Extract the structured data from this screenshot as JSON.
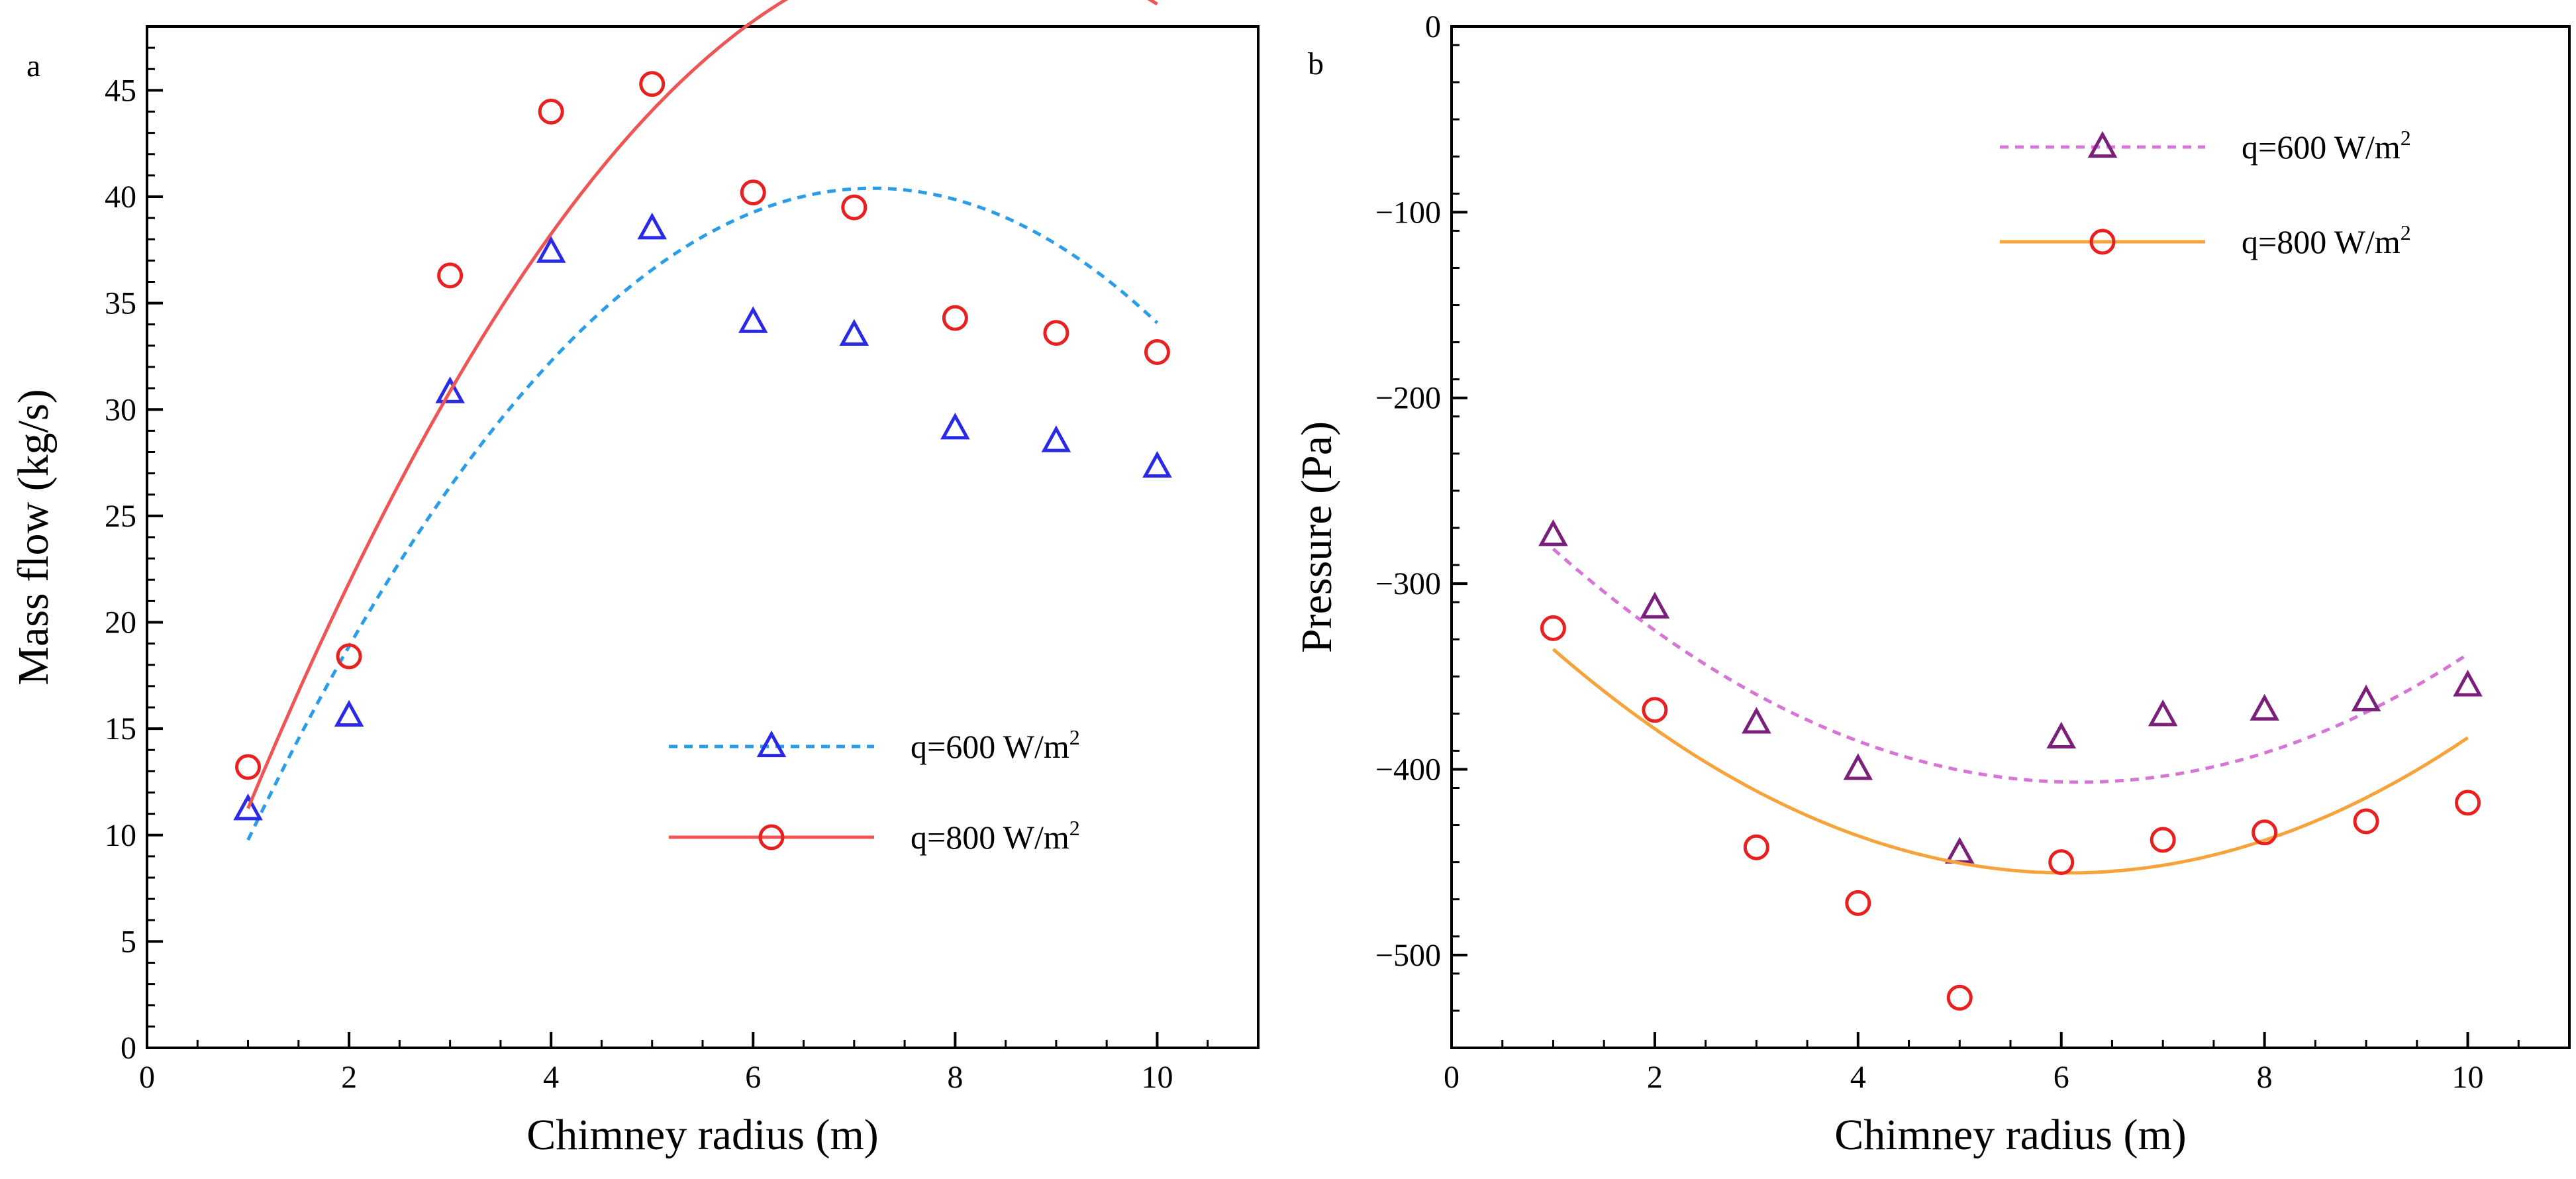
{
  "chart_data": [
    {
      "panel": "a",
      "type": "scatter",
      "xlabel": "Chimney radius (m)",
      "ylabel": "Mass flow (kg/s)",
      "xlim": [
        0,
        11
      ],
      "ylim": [
        0,
        48
      ],
      "xticks": [
        0,
        2,
        4,
        6,
        8,
        10
      ],
      "yticks": [
        0,
        5,
        10,
        15,
        20,
        25,
        30,
        35,
        40,
        45
      ],
      "x_minor_step": 0.5,
      "y_minor_step": 1,
      "legend_position": "lower-right",
      "series": [
        {
          "name": "q=600 W/m",
          "name_sup": "2",
          "marker": "triangle",
          "line": "dotted",
          "color": "#2a2ae6",
          "line_color": "#2b9de8",
          "x": [
            1,
            2,
            3,
            4,
            5,
            6,
            7,
            8,
            9,
            10
          ],
          "values": [
            11.2,
            15.6,
            30.8,
            37.4,
            38.5,
            34.1,
            33.5,
            29.1,
            28.5,
            27.3
          ],
          "fit": [
            -0.8,
            11.5,
            -0.93
          ]
        },
        {
          "name": "q=800 W/m",
          "name_sup": "2",
          "marker": "circle",
          "line": "solid",
          "color": "#e82020",
          "line_color": "#ee5555",
          "x": [
            1,
            2,
            3,
            4,
            5,
            6,
            7,
            8,
            9,
            10
          ],
          "values": [
            13.2,
            18.4,
            36.3,
            44.0,
            45.3,
            40.2,
            39.5,
            34.3,
            33.6,
            32.7
          ],
          "fit": [
            -0.8,
            13.0,
            -0.95
          ]
        }
      ]
    },
    {
      "panel": "b",
      "type": "scatter",
      "xlabel": "Chimney radius (m)",
      "ylabel": "Pressure (Pa)",
      "xlim": [
        0,
        11
      ],
      "ylim": [
        -550,
        0
      ],
      "xticks": [
        0,
        2,
        4,
        6,
        8,
        10
      ],
      "yticks": [
        0,
        -100,
        -200,
        -300,
        -400,
        -500
      ],
      "x_minor_step": 0.5,
      "y_minor_step": 20,
      "legend_position": "top-right",
      "series": [
        {
          "name": "q=600 W/m",
          "name_sup": "2",
          "marker": "triangle",
          "line": "dotted",
          "color": "#7a1f7a",
          "line_color": "#d675d6",
          "x": [
            1,
            2,
            3,
            4,
            5,
            6,
            7,
            8,
            9,
            10
          ],
          "values": [
            -274,
            -313,
            -375,
            -400,
            -445,
            -383,
            -371,
            -368,
            -363,
            -355
          ],
          "fit": [
            4.7,
            -58,
            -228
          ]
        },
        {
          "name": "q=800 W/m",
          "name_sup": "2",
          "marker": "circle",
          "line": "solid",
          "color": "#e82020",
          "line_color": "#f5a33a",
          "x": [
            1,
            2,
            3,
            4,
            5,
            6,
            7,
            8,
            9,
            10
          ],
          "values": [
            -324,
            -368,
            -442,
            -472,
            -523,
            -450,
            -438,
            -434,
            -428,
            -418
          ],
          "fit": [
            4.7,
            -57,
            -283
          ]
        }
      ]
    }
  ]
}
